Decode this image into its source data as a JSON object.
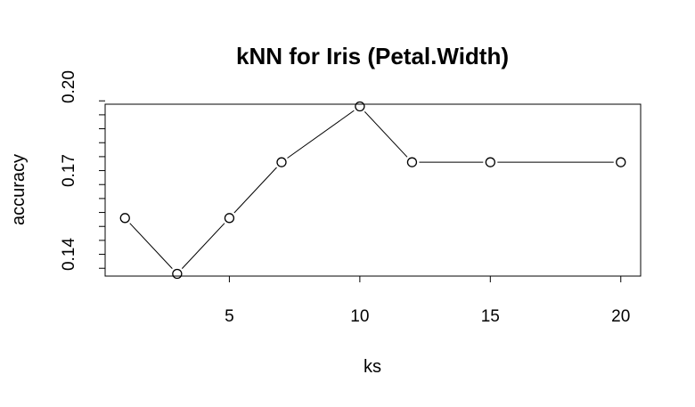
{
  "chart_data": {
    "type": "line",
    "title": "kNN for Iris (Petal.Width)",
    "xlabel": "ks",
    "ylabel": "accuracy",
    "x": [
      1,
      3,
      5,
      7,
      10,
      12,
      15,
      20
    ],
    "y": [
      0.153,
      0.133,
      0.153,
      0.173,
      0.193,
      0.173,
      0.173,
      0.173
    ],
    "xlim": [
      0.24,
      20.76
    ],
    "ylim": [
      0.1322,
      0.1938
    ],
    "xticks": [
      5,
      10,
      15,
      20
    ],
    "yticks": [
      0.135,
      0.14,
      0.145,
      0.15,
      0.155,
      0.16,
      0.165,
      0.17,
      0.175,
      0.18,
      0.185,
      0.19,
      0.195
    ],
    "ytick_labels": {
      "0.14": "0.14",
      "0.17": "0.17",
      "0.2": "0.20"
    },
    "ytick_label_values": [
      0.14,
      0.17,
      0.2
    ],
    "point_style": "open-circle",
    "line_style": "gapped",
    "grid": false,
    "legend": "none",
    "colors": {
      "line": "#000000",
      "point": "#000000"
    }
  }
}
